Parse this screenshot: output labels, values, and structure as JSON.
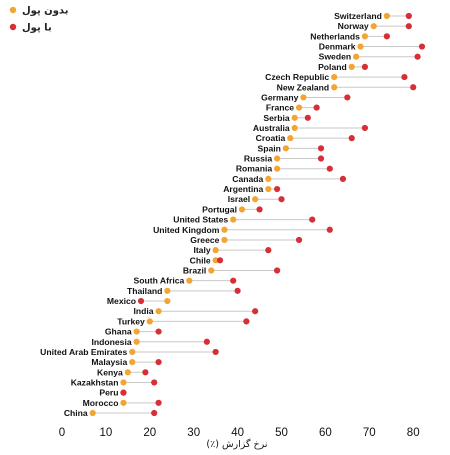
{
  "chart_data": {
    "type": "dumbbell",
    "xlabel": "نرخ گزارش (٪)",
    "xlim": [
      -3,
      85
    ],
    "xticks": [
      0,
      10,
      20,
      30,
      40,
      50,
      60,
      70,
      80
    ],
    "legend_position": "top-left",
    "series": [
      {
        "name": "بدون پول",
        "color": "#f2a533"
      },
      {
        "name": "با پول",
        "color": "#d62f36"
      }
    ],
    "categories": [
      "Switzerland",
      "Norway",
      "Netherlands",
      "Denmark",
      "Sweden",
      "Poland",
      "Czech Republic",
      "New Zealand",
      "Germany",
      "France",
      "Serbia",
      "Australia",
      "Croatia",
      "Spain",
      "Russia",
      "Romania",
      "Canada",
      "Argentina",
      "Israel",
      "Portugal",
      "United States",
      "United Kingdom",
      "Greece",
      "Italy",
      "Chile",
      "Brazil",
      "South Africa",
      "Thailand",
      "Mexico",
      "India",
      "Turkey",
      "Ghana",
      "Indonesia",
      "United Arab Emirates",
      "Malaysia",
      "Kenya",
      "Kazakhstan",
      "Peru",
      "Morocco",
      "China"
    ],
    "no_money": [
      74,
      71,
      69,
      68,
      67,
      66,
      62,
      62,
      55,
      54,
      53,
      53,
      52,
      51,
      49,
      49,
      47,
      47,
      44,
      41,
      39,
      37,
      37,
      35,
      35,
      34,
      29,
      24,
      24,
      22,
      20,
      17,
      17,
      16,
      16,
      15,
      14,
      14,
      14,
      7
    ],
    "with_money": [
      79,
      79,
      74,
      82,
      81,
      69,
      78,
      80,
      65,
      58,
      56,
      69,
      66,
      59,
      59,
      61,
      64,
      49,
      50,
      45,
      57,
      61,
      54,
      47,
      36,
      49,
      39,
      40,
      18,
      44,
      42,
      22,
      33,
      35,
      22,
      19,
      21,
      14,
      22,
      21
    ]
  }
}
